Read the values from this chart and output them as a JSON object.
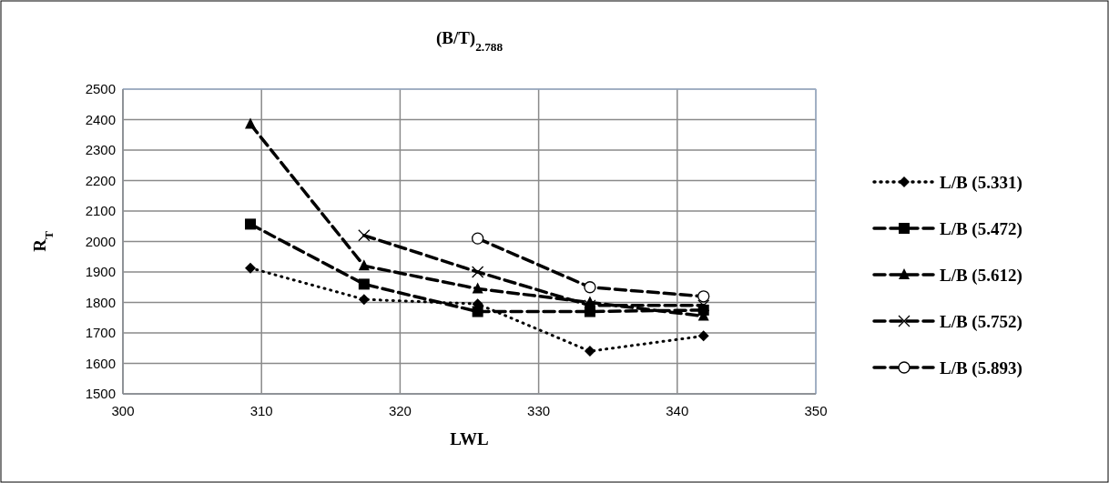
{
  "chart_data": {
    "type": "line",
    "title": "(B/T)$_{2.788}$",
    "xlabel": "LWL",
    "ylabel": "R$_{T}$",
    "xlim": [
      300,
      350
    ],
    "xticks": [
      300,
      310,
      320,
      330,
      340,
      350
    ],
    "ylim": [
      1500,
      2500
    ],
    "yticks": [
      1500,
      1600,
      1700,
      1800,
      1900,
      2000,
      2100,
      2200,
      2300,
      2400,
      2500
    ],
    "grid": true,
    "legend": "right",
    "series": [
      {
        "name": "L/B (5.331)",
        "color": "#000000",
        "marker": "diamond",
        "line_style": "dotted",
        "x": [
          309.2,
          317.4,
          325.6,
          333.7,
          341.9
        ],
        "values": [
          1913,
          1810,
          1795,
          1640,
          1690
        ]
      },
      {
        "name": "L/B (5.472)",
        "color": "#000000",
        "marker": "square",
        "line_style": "dashed",
        "x": [
          309.2,
          317.4,
          325.6,
          333.7,
          341.9
        ],
        "values": [
          2057,
          1860,
          1770,
          1770,
          1775
        ]
      },
      {
        "name": "L/B (5.612)",
        "color": "#000000",
        "marker": "triangle",
        "line_style": "dashed",
        "x": [
          309.2,
          317.4,
          325.6,
          333.7,
          341.9
        ],
        "values": [
          2385,
          1920,
          1845,
          1800,
          1755
        ]
      },
      {
        "name": "L/B (5.752)",
        "color": "#000000",
        "marker": "cross",
        "line_style": "dashed",
        "x": [
          317.4,
          325.6,
          333.7,
          341.9
        ],
        "values": [
          2020,
          1900,
          1790,
          1790
        ]
      },
      {
        "name": "L/B (5.893)",
        "color": "#000000",
        "marker": "circle",
        "line_style": "dashed",
        "x": [
          325.6,
          333.7,
          341.9
        ],
        "values": [
          2010,
          1850,
          1820
        ]
      }
    ]
  }
}
